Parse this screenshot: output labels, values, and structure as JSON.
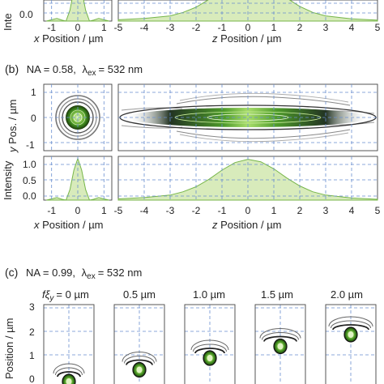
{
  "panels": {
    "top_partial": {
      "xy_ticks": [
        "-1",
        "0",
        "1"
      ],
      "z_ticks": [
        "-5",
        "-4",
        "-3",
        "-2",
        "-1",
        "0",
        "1",
        "2",
        "3",
        "4",
        "5"
      ],
      "y_tick_visible": "0.0",
      "ylabel_fragment": "Inte",
      "xlabel_left_var": "x",
      "xlabel_right_var": "z",
      "xlabel_suffix": " Position / µm"
    },
    "b": {
      "tag": "(b)",
      "na": "NA = 0.58,",
      "lambda_sym": "λ",
      "lambda_sub": "ex",
      "lambda_val": "= 532 nm",
      "ypos_var": "y",
      "ypos_label": " Pos. / µm",
      "ypos_ticks": [
        "1",
        "0",
        "-1"
      ],
      "intensity_label": "Intensity",
      "intensity_ticks": [
        "1.0",
        "0.5",
        "0.0"
      ],
      "xy_ticks": [
        "-1",
        "0",
        "1"
      ],
      "z_ticks": [
        "-5",
        "-4",
        "-3",
        "-2",
        "-1",
        "0",
        "1",
        "2",
        "3",
        "4",
        "5"
      ],
      "xlabel_left_var": "x",
      "xlabel_right_var": "z",
      "xlabel_suffix": " Position / µm"
    },
    "c": {
      "tag": "(c)",
      "na": "NA = 0.99,",
      "lambda_sym": "λ",
      "lambda_sub": "ex",
      "lambda_val": "= 532 nm",
      "shift_prefix": "fξ",
      "shift_sub": "y",
      "shifts": [
        "= 0 µm",
        "0.5 µm",
        "1.0 µm",
        "1.5 µm",
        "2.0 µm"
      ],
      "ylabel": "Position / µm",
      "y_ticks": [
        "3",
        "2",
        "1",
        "0"
      ]
    }
  },
  "chart_data": [
    {
      "type": "line",
      "title": "",
      "xlabel": "x Position / µm",
      "ylabel": "Intensity",
      "xlim": [
        -1.3,
        1.3
      ],
      "ylim": [
        0,
        1.05
      ],
      "series": [
        {
          "x": [
            -1.2,
            -1.0,
            -0.8,
            -0.6,
            -0.45,
            -0.3,
            -0.15,
            0,
            0.15,
            0.3,
            0.45,
            0.6,
            0.8,
            1.0,
            1.2
          ],
          "y": [
            0.0,
            0.03,
            0.06,
            0.02,
            0.0,
            0.25,
            0.72,
            1.0,
            0.72,
            0.25,
            0.0,
            0.02,
            0.06,
            0.03,
            0.0
          ]
        }
      ],
      "grid": true
    },
    {
      "type": "line",
      "title": "",
      "xlabel": "z Position / µm",
      "ylabel": "Intensity",
      "xlim": [
        -5,
        5
      ],
      "ylim": [
        0,
        1.05
      ],
      "series": [
        {
          "x": [
            -5,
            -4,
            -3,
            -2.5,
            -2,
            -1.5,
            -1,
            -0.5,
            0,
            0.5,
            1,
            1.5,
            2,
            2.5,
            3,
            4,
            5
          ],
          "y": [
            0.03,
            0.06,
            0.12,
            0.2,
            0.32,
            0.5,
            0.72,
            0.9,
            0.98,
            0.92,
            0.75,
            0.53,
            0.34,
            0.2,
            0.12,
            0.05,
            0.02
          ]
        }
      ],
      "grid": true
    },
    {
      "type": "heatmap",
      "title": "NA = 0.99, λex = 532 nm",
      "ylabel": "Position / µm",
      "ylim": [
        0,
        3
      ],
      "focus_y_um": [
        0,
        0.5,
        1.0,
        1.5,
        2.0
      ]
    }
  ]
}
